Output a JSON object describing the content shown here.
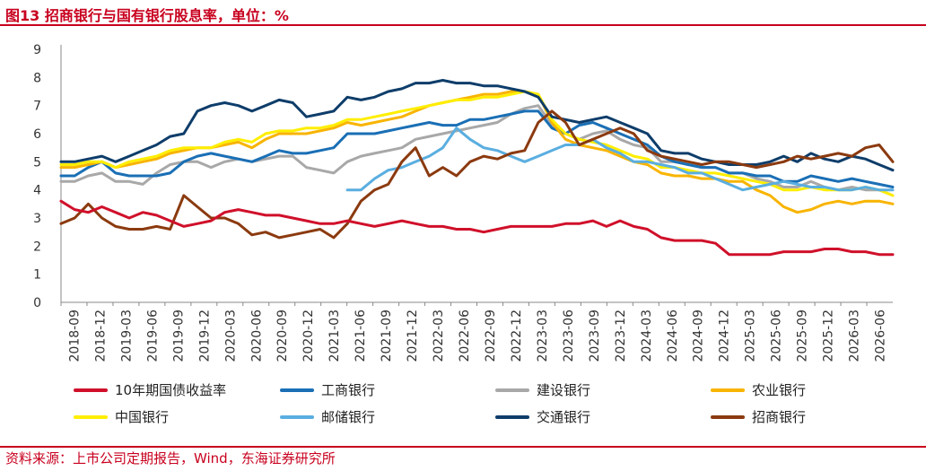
{
  "header": {
    "title": "图13  招商银行与国有银行股息率，单位：%"
  },
  "footer": {
    "source": "资料来源：上市公司定期报告，Wind，东海证券研究所"
  },
  "colors": {
    "accent": "#c8001e",
    "10y": "#d0102a",
    "icbc": "#1a6fb5",
    "ccb": "#a8a8a8",
    "abc": "#f8b400",
    "boc": "#ffee00",
    "psbc": "#5aaee0",
    "bocom": "#0e3d6a",
    "cmb": "#8b3a0f"
  },
  "chart_data": {
    "type": "line",
    "title": "招商银行与国有银行股息率，单位：%",
    "xlabel": "",
    "ylabel": "",
    "ylim": [
      0,
      9
    ],
    "yticks": [
      "0",
      "1",
      "2",
      "3",
      "4",
      "5",
      "6",
      "7",
      "8",
      "9"
    ],
    "x_ticks": [
      "2018-09",
      "2018-12",
      "2019-03",
      "2019-06",
      "2019-09",
      "2019-12",
      "2020-03",
      "2020-06",
      "2020-09",
      "2020-12",
      "2021-03",
      "2021-06",
      "2021-09",
      "2021-12",
      "2022-03",
      "2022-06",
      "2022-09",
      "2022-12",
      "2023-03",
      "2023-06",
      "2023-09",
      "2023-12",
      "2024-03",
      "2024-06",
      "2024-09",
      "2024-12",
      "2025-03",
      "2025-06",
      "2025-09",
      "2025-12",
      "2026-03",
      "2026-06"
    ],
    "grid": false,
    "legend_position": "bottom",
    "series": [
      {
        "name": "10年期国债收益率",
        "key": "10y",
        "start": 0,
        "values": [
          3.6,
          3.3,
          3.2,
          3.4,
          3.2,
          3.0,
          3.2,
          3.1,
          2.9,
          2.7,
          2.8,
          2.9,
          3.2,
          3.3,
          3.2,
          3.1,
          3.1,
          3.0,
          2.9,
          2.8,
          2.8,
          2.9,
          2.8,
          2.7,
          2.8,
          2.9,
          2.8,
          2.7,
          2.7,
          2.6,
          2.6,
          2.5,
          2.6,
          2.7,
          2.7,
          2.7,
          2.7,
          2.8,
          2.8,
          2.9,
          2.7,
          2.9,
          2.7,
          2.6,
          2.3,
          2.2,
          2.2,
          2.2,
          2.1,
          1.7,
          1.7,
          1.7,
          1.7,
          1.8,
          1.8,
          1.8,
          1.9,
          1.9,
          1.8,
          1.8,
          1.7,
          1.7
        ]
      },
      {
        "name": "工商银行",
        "key": "icbc",
        "start": 0,
        "values": [
          4.5,
          4.5,
          4.8,
          5.0,
          4.6,
          4.5,
          4.5,
          4.5,
          4.6,
          5.0,
          5.2,
          5.3,
          5.2,
          5.1,
          5.0,
          5.2,
          5.4,
          5.3,
          5.3,
          5.4,
          5.5,
          6.0,
          6.0,
          6.0,
          6.1,
          6.2,
          6.3,
          6.4,
          6.3,
          6.3,
          6.5,
          6.5,
          6.6,
          6.7,
          6.8,
          6.8,
          6.2,
          6.0,
          6.3,
          6.4,
          6.2,
          6.0,
          5.8,
          5.6,
          5.2,
          5.0,
          4.9,
          4.8,
          4.8,
          4.6,
          4.6,
          4.5,
          4.5,
          4.3,
          4.3,
          4.5,
          4.4,
          4.3,
          4.4,
          4.3,
          4.2,
          4.1
        ]
      },
      {
        "name": "建设银行",
        "key": "ccb",
        "start": 0,
        "values": [
          4.3,
          4.3,
          4.5,
          4.6,
          4.3,
          4.3,
          4.2,
          4.6,
          4.9,
          5.0,
          5.0,
          4.8,
          5.0,
          5.1,
          5.0,
          5.1,
          5.2,
          5.2,
          4.8,
          4.7,
          4.6,
          5.0,
          5.2,
          5.3,
          5.4,
          5.5,
          5.8,
          5.9,
          6.0,
          6.1,
          6.2,
          6.3,
          6.4,
          6.7,
          6.9,
          7.0,
          6.3,
          6.0,
          5.8,
          6.0,
          6.1,
          5.8,
          5.6,
          5.5,
          5.0,
          5.0,
          4.9,
          4.8,
          4.8,
          4.6,
          4.6,
          4.4,
          4.3,
          4.1,
          4.1,
          4.3,
          4.1,
          4.0,
          4.1,
          4.0,
          4.0,
          3.8
        ]
      },
      {
        "name": "农业银行",
        "key": "abc",
        "start": 0,
        "values": [
          4.8,
          4.8,
          4.9,
          5.0,
          4.8,
          4.9,
          5.0,
          5.1,
          5.3,
          5.4,
          5.5,
          5.5,
          5.6,
          5.7,
          5.5,
          5.8,
          6.0,
          6.0,
          6.0,
          6.1,
          6.2,
          6.4,
          6.3,
          6.4,
          6.5,
          6.6,
          6.8,
          7.0,
          7.1,
          7.2,
          7.3,
          7.4,
          7.4,
          7.5,
          7.5,
          7.4,
          6.4,
          5.8,
          5.6,
          5.5,
          5.4,
          5.2,
          5.0,
          4.9,
          4.6,
          4.5,
          4.5,
          4.4,
          4.4,
          4.3,
          4.3,
          4.0,
          3.8,
          3.4,
          3.2,
          3.3,
          3.5,
          3.6,
          3.5,
          3.6,
          3.6,
          3.5
        ]
      },
      {
        "name": "中国银行",
        "key": "boc",
        "start": 0,
        "values": [
          4.9,
          4.9,
          5.0,
          5.0,
          4.8,
          5.0,
          5.1,
          5.2,
          5.4,
          5.5,
          5.5,
          5.5,
          5.7,
          5.8,
          5.7,
          6.0,
          6.1,
          6.1,
          6.2,
          6.2,
          6.3,
          6.5,
          6.5,
          6.6,
          6.7,
          6.8,
          6.9,
          7.0,
          7.1,
          7.2,
          7.2,
          7.3,
          7.3,
          7.4,
          7.5,
          7.4,
          6.5,
          6.0,
          5.8,
          5.7,
          5.6,
          5.4,
          5.2,
          5.1,
          4.8,
          4.8,
          4.7,
          4.6,
          4.6,
          4.5,
          4.4,
          4.3,
          4.2,
          4.0,
          4.0,
          4.1,
          4.0,
          4.0,
          4.0,
          4.1,
          4.0,
          3.8
        ]
      },
      {
        "name": "邮储银行",
        "key": "psbc",
        "start": 21,
        "values": [
          4.0,
          4.0,
          4.4,
          4.7,
          4.8,
          5.0,
          5.2,
          5.5,
          6.2,
          5.8,
          5.5,
          5.4,
          5.2,
          5.0,
          5.2,
          5.4,
          5.6,
          5.6,
          5.8,
          5.5,
          5.3,
          5.0,
          5.0,
          4.9,
          4.8,
          4.6,
          4.6,
          4.4,
          4.2,
          4.0,
          4.1,
          4.2,
          4.3,
          4.2,
          4.1,
          4.1,
          4.0,
          4.0,
          4.1,
          4.0,
          4.0
        ]
      },
      {
        "name": "交通银行",
        "key": "bocom",
        "start": 0,
        "values": [
          5.0,
          5.0,
          5.1,
          5.2,
          5.0,
          5.2,
          5.4,
          5.6,
          5.9,
          6.0,
          6.8,
          7.0,
          7.1,
          7.0,
          6.8,
          7.0,
          7.2,
          7.1,
          6.6,
          6.7,
          6.8,
          7.3,
          7.2,
          7.3,
          7.5,
          7.6,
          7.8,
          7.8,
          7.9,
          7.8,
          7.8,
          7.7,
          7.7,
          7.6,
          7.5,
          7.3,
          6.6,
          6.5,
          6.4,
          6.5,
          6.6,
          6.4,
          6.2,
          6.0,
          5.4,
          5.3,
          5.3,
          5.1,
          5.0,
          4.9,
          4.9,
          4.9,
          5.0,
          5.2,
          5.0,
          5.3,
          5.1,
          5.0,
          5.2,
          5.1,
          4.9,
          4.7
        ]
      },
      {
        "name": "招商银行",
        "key": "cmb",
        "start": 0,
        "values": [
          2.8,
          3.0,
          3.5,
          3.0,
          2.7,
          2.6,
          2.6,
          2.7,
          2.6,
          3.8,
          3.4,
          3.0,
          3.0,
          2.8,
          2.4,
          2.5,
          2.3,
          2.4,
          2.5,
          2.6,
          2.3,
          2.8,
          3.6,
          4.0,
          4.2,
          5.0,
          5.5,
          4.5,
          4.8,
          4.5,
          5.0,
          5.2,
          5.1,
          5.3,
          5.4,
          6.4,
          6.8,
          6.4,
          5.6,
          5.8,
          6.0,
          6.2,
          6.0,
          5.4,
          5.2,
          5.1,
          5.0,
          4.9,
          5.0,
          5.0,
          4.9,
          4.8,
          4.9,
          5.0,
          5.2,
          5.1,
          5.2,
          5.3,
          5.2,
          5.5,
          5.6,
          5.0
        ]
      }
    ]
  }
}
